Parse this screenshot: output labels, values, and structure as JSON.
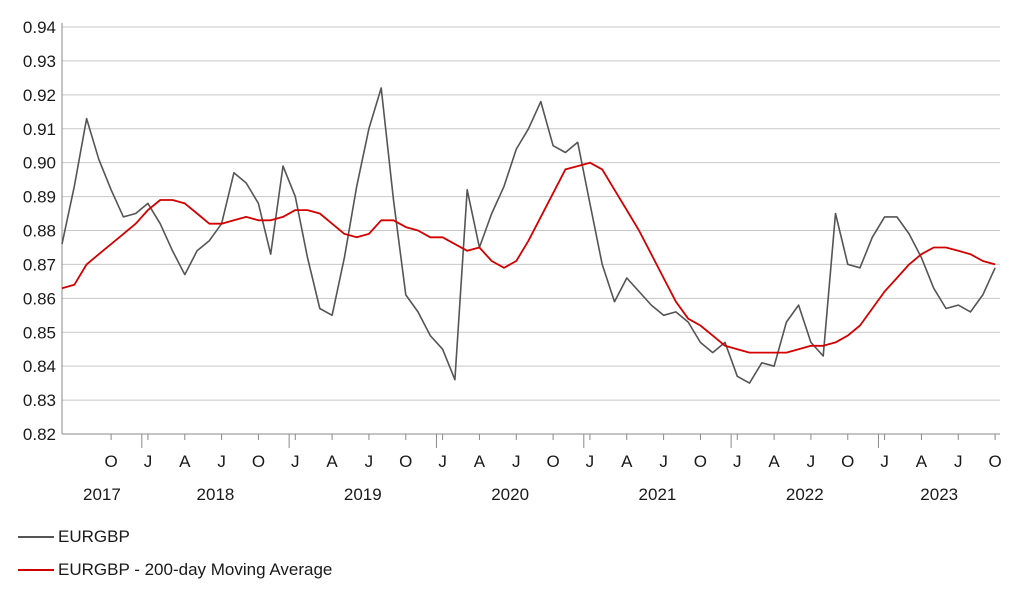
{
  "chart_data": {
    "type": "line",
    "title": "",
    "xlabel": "",
    "ylabel": "",
    "ylim": [
      0.82,
      0.94
    ],
    "grid": "horizontal",
    "legend_placement": "bottom-left",
    "y_ticks": [
      "0.82",
      "0.83",
      "0.84",
      "0.85",
      "0.86",
      "0.87",
      "0.88",
      "0.89",
      "0.90",
      "0.91",
      "0.92",
      "0.93",
      "0.94"
    ],
    "x_month_ticks": [
      "O",
      "J",
      "A",
      "J",
      "O",
      "J",
      "A",
      "J",
      "O",
      "J",
      "A",
      "J",
      "O",
      "J",
      "A",
      "J",
      "O",
      "J",
      "A",
      "J",
      "O",
      "J",
      "A",
      "J",
      "O"
    ],
    "x_year_labels": [
      "2017",
      "2018",
      "2019",
      "2020",
      "2021",
      "2022",
      "2023"
    ],
    "series": [
      {
        "name": "EURGBP",
        "color": "#555555",
        "x": [
          "2017-06",
          "2017-07",
          "2017-08",
          "2017-09",
          "2017-10",
          "2017-11",
          "2017-12",
          "2018-01",
          "2018-02",
          "2018-03",
          "2018-04",
          "2018-05",
          "2018-06",
          "2018-07",
          "2018-08",
          "2018-09",
          "2018-10",
          "2018-11",
          "2018-12",
          "2019-01",
          "2019-02",
          "2019-03",
          "2019-04",
          "2019-05",
          "2019-06",
          "2019-07",
          "2019-08",
          "2019-09",
          "2019-10",
          "2019-11",
          "2019-12",
          "2020-01",
          "2020-02",
          "2020-03",
          "2020-04",
          "2020-05",
          "2020-06",
          "2020-07",
          "2020-08",
          "2020-09",
          "2020-10",
          "2020-11",
          "2020-12",
          "2021-01",
          "2021-02",
          "2021-03",
          "2021-04",
          "2021-05",
          "2021-06",
          "2021-07",
          "2021-08",
          "2021-09",
          "2021-10",
          "2021-11",
          "2021-12",
          "2022-01",
          "2022-02",
          "2022-03",
          "2022-04",
          "2022-05",
          "2022-06",
          "2022-07",
          "2022-08",
          "2022-09",
          "2022-10",
          "2022-11",
          "2022-12",
          "2023-01",
          "2023-02",
          "2023-03",
          "2023-04",
          "2023-05",
          "2023-06",
          "2023-07",
          "2023-08",
          "2023-09",
          "2023-10"
        ],
        "values": [
          0.876,
          0.893,
          0.913,
          0.901,
          0.892,
          0.884,
          0.885,
          0.888,
          0.882,
          0.874,
          0.867,
          0.874,
          0.877,
          0.882,
          0.897,
          0.894,
          0.888,
          0.873,
          0.899,
          0.89,
          0.872,
          0.857,
          0.855,
          0.872,
          0.893,
          0.91,
          0.922,
          0.889,
          0.861,
          0.856,
          0.849,
          0.845,
          0.836,
          0.892,
          0.875,
          0.885,
          0.893,
          0.904,
          0.91,
          0.918,
          0.905,
          0.903,
          0.906,
          0.888,
          0.87,
          0.859,
          0.866,
          0.862,
          0.858,
          0.855,
          0.856,
          0.853,
          0.847,
          0.844,
          0.847,
          0.837,
          0.835,
          0.841,
          0.84,
          0.853,
          0.858,
          0.847,
          0.843,
          0.885,
          0.87,
          0.869,
          0.878,
          0.884,
          0.884,
          0.879,
          0.872,
          0.863,
          0.857,
          0.858,
          0.856,
          0.861,
          0.869
        ]
      },
      {
        "name": "EURGBP - 200-day Moving Average",
        "color": "#d40000",
        "x": [
          "2017-06",
          "2017-07",
          "2017-08",
          "2017-09",
          "2017-10",
          "2017-11",
          "2017-12",
          "2018-01",
          "2018-02",
          "2018-03",
          "2018-04",
          "2018-05",
          "2018-06",
          "2018-07",
          "2018-08",
          "2018-09",
          "2018-10",
          "2018-11",
          "2018-12",
          "2019-01",
          "2019-02",
          "2019-03",
          "2019-04",
          "2019-05",
          "2019-06",
          "2019-07",
          "2019-08",
          "2019-09",
          "2019-10",
          "2019-11",
          "2019-12",
          "2020-01",
          "2020-02",
          "2020-03",
          "2020-04",
          "2020-05",
          "2020-06",
          "2020-07",
          "2020-08",
          "2020-09",
          "2020-10",
          "2020-11",
          "2020-12",
          "2021-01",
          "2021-02",
          "2021-03",
          "2021-04",
          "2021-05",
          "2021-06",
          "2021-07",
          "2021-08",
          "2021-09",
          "2021-10",
          "2021-11",
          "2021-12",
          "2022-01",
          "2022-02",
          "2022-03",
          "2022-04",
          "2022-05",
          "2022-06",
          "2022-07",
          "2022-08",
          "2022-09",
          "2022-10",
          "2022-11",
          "2022-12",
          "2023-01",
          "2023-02",
          "2023-03",
          "2023-04",
          "2023-05",
          "2023-06",
          "2023-07",
          "2023-08",
          "2023-09",
          "2023-10"
        ],
        "values": [
          0.863,
          0.864,
          0.87,
          0.873,
          0.876,
          0.879,
          0.882,
          0.886,
          0.889,
          0.889,
          0.888,
          0.885,
          0.882,
          0.882,
          0.883,
          0.884,
          0.883,
          0.883,
          0.884,
          0.886,
          0.886,
          0.885,
          0.882,
          0.879,
          0.878,
          0.879,
          0.883,
          0.883,
          0.881,
          0.88,
          0.878,
          0.878,
          0.876,
          0.874,
          0.875,
          0.871,
          0.869,
          0.871,
          0.877,
          0.884,
          0.891,
          0.898,
          0.899,
          0.9,
          0.898,
          0.892,
          0.886,
          0.88,
          0.873,
          0.866,
          0.859,
          0.854,
          0.852,
          0.849,
          0.846,
          0.845,
          0.844,
          0.844,
          0.844,
          0.844,
          0.845,
          0.846,
          0.846,
          0.847,
          0.849,
          0.852,
          0.857,
          0.862,
          0.866,
          0.87,
          0.873,
          0.875,
          0.875,
          0.874,
          0.873,
          0.871,
          0.87
        ]
      }
    ]
  }
}
